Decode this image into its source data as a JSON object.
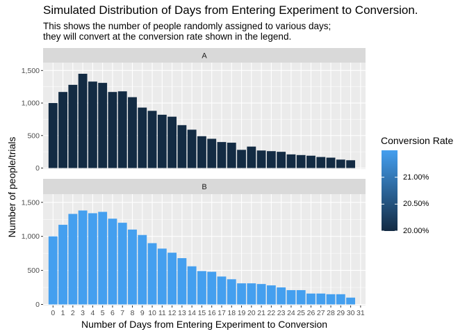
{
  "title": "Simulated Distribution of Days from Entering Experiment to Conversion.",
  "subtitle": "This shows the number of people randomly assigned to various days;\nthey will convert at the conversion rate shown in the legend.",
  "chart_data": {
    "type": "bar",
    "xlabel": "Number of Days from Entering Experiment to Conversion",
    "ylabel": "Number of people/trials",
    "ylim": [
      0,
      1600
    ],
    "yticks": [
      "0",
      "500",
      "1,000",
      "1,500"
    ],
    "xlim": [
      -1,
      31.5
    ],
    "xticks": [
      "0",
      "1",
      "2",
      "3",
      "4",
      "5",
      "6",
      "7",
      "8",
      "9",
      "10",
      "11",
      "12",
      "13",
      "14",
      "15",
      "16",
      "17",
      "18",
      "19",
      "20",
      "21",
      "22",
      "23",
      "24",
      "25",
      "26",
      "27",
      "28",
      "29",
      "30",
      "31"
    ],
    "grid": true,
    "facets": [
      {
        "label": "A",
        "conversion_rate": 0.2,
        "color": "#132B43",
        "x": [
          0,
          1,
          2,
          3,
          4,
          5,
          6,
          7,
          8,
          9,
          10,
          11,
          12,
          13,
          14,
          15,
          16,
          17,
          18,
          19,
          20,
          21,
          22,
          23,
          24,
          25,
          26,
          27,
          28,
          29,
          30
        ],
        "values": [
          1000,
          1170,
          1280,
          1450,
          1330,
          1310,
          1170,
          1180,
          1090,
          930,
          880,
          820,
          790,
          660,
          590,
          490,
          450,
          400,
          390,
          280,
          330,
          270,
          260,
          250,
          210,
          200,
          190,
          170,
          160,
          130,
          120
        ]
      },
      {
        "label": "B",
        "conversion_rate": 0.215,
        "color": "#449FEF",
        "x": [
          0,
          1,
          2,
          3,
          4,
          5,
          6,
          7,
          8,
          9,
          10,
          11,
          12,
          13,
          14,
          15,
          16,
          17,
          18,
          19,
          20,
          21,
          22,
          23,
          24,
          25,
          26,
          27,
          28,
          29,
          30
        ],
        "values": [
          1000,
          1170,
          1330,
          1380,
          1340,
          1360,
          1260,
          1200,
          1100,
          1020,
          900,
          820,
          760,
          680,
          560,
          490,
          480,
          410,
          370,
          310,
          310,
          300,
          280,
          250,
          210,
          210,
          160,
          160,
          150,
          150,
          100
        ]
      }
    ],
    "legend": {
      "title": "Conversion Rate",
      "placement": "right",
      "ticks": [
        {
          "value": 0.21,
          "label": "21.00%"
        },
        {
          "value": 0.205,
          "label": "20.50%"
        },
        {
          "value": 0.2,
          "label": "20.00%"
        }
      ],
      "range": [
        0.2,
        0.215
      ],
      "color_low": "#132B43",
      "color_high": "#449FEF"
    }
  }
}
